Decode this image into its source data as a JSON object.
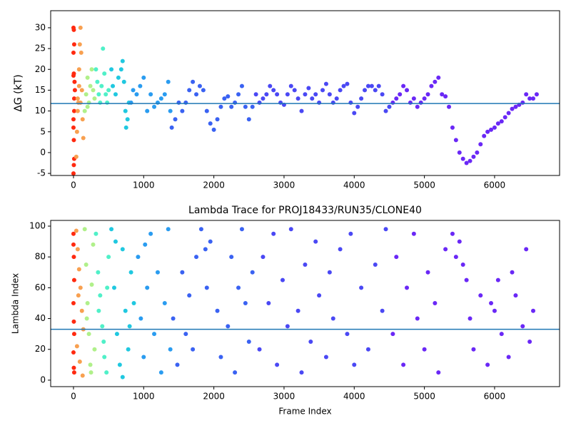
{
  "chart_data": [
    {
      "type": "scatter",
      "ylabel": "ΔG (kT)",
      "xlim": [
        -325,
        6926
      ],
      "ylim": [
        -5.5,
        34.1
      ],
      "xticks": [
        0,
        1000,
        2000,
        3000,
        4000,
        5000,
        6000
      ],
      "yticks": [
        -5,
        0,
        5,
        10,
        15,
        20,
        25,
        30
      ],
      "hline": 11.8,
      "hline_color": "#1f77b4",
      "series": [
        {
          "color": "#ff2a10",
          "x": [
            0,
            5,
            10,
            0,
            5,
            0,
            10,
            0,
            5,
            10,
            5,
            0,
            15,
            20,
            10,
            0
          ],
          "y": [
            30,
            29.5,
            26,
            24,
            19,
            18.5,
            10,
            8,
            3,
            -1.5,
            -3,
            -5,
            17,
            15,
            13,
            6
          ]
        },
        {
          "color": "#f8a050",
          "x": [
            40,
            50,
            60,
            70,
            80,
            90,
            100,
            110,
            120,
            130,
            140,
            100,
            60,
            80
          ],
          "y": [
            -1,
            5,
            10,
            12,
            20,
            26,
            30,
            24,
            15,
            8,
            3.5,
            12,
            13,
            16
          ]
        },
        {
          "color": "#b0f08a",
          "x": [
            160,
            180,
            200,
            220,
            240,
            260,
            280,
            300,
            200
          ],
          "y": [
            10,
            14,
            18,
            12,
            16,
            20,
            15,
            13,
            11
          ]
        },
        {
          "color": "#50f0c8",
          "x": [
            320,
            340,
            360,
            380,
            400,
            420,
            440,
            460,
            480,
            500
          ],
          "y": [
            20,
            17,
            14,
            12,
            16,
            25,
            19,
            14,
            12,
            15
          ]
        },
        {
          "color": "#20c8e0",
          "x": [
            540,
            560,
            600,
            640,
            680,
            700,
            720,
            740,
            750,
            770,
            790
          ],
          "y": [
            20,
            16,
            14,
            18,
            20,
            22,
            17,
            10,
            6,
            8,
            12
          ]
        },
        {
          "color": "#2a9cf0",
          "x": [
            820,
            850,
            900,
            950,
            1000,
            1050,
            1100,
            1150,
            1200,
            1250,
            1300,
            1350,
            1380
          ],
          "y": [
            12,
            15,
            14,
            16,
            18,
            10,
            14,
            11,
            12,
            13,
            14,
            17,
            10
          ]
        },
        {
          "color": "#3a62f2",
          "x": [
            1400,
            1450,
            1500,
            1550,
            1600,
            1650,
            1700,
            1750,
            1800,
            1850,
            1900,
            1950,
            2000,
            2050,
            2100,
            2150,
            2200,
            2250,
            2300,
            2350,
            2400,
            2450,
            2500,
            2550
          ],
          "y": [
            6,
            8,
            12,
            10,
            12,
            15,
            17,
            14,
            16,
            15,
            10,
            7,
            5.5,
            8,
            11,
            13,
            13.5,
            11,
            12,
            14,
            16,
            11,
            8,
            11
          ]
        },
        {
          "color": "#4a48f4",
          "x": [
            2600,
            2650,
            2700,
            2750,
            2800,
            2850,
            2900,
            2950,
            3000,
            3050,
            3100,
            3150,
            3200,
            3250,
            3300,
            3350,
            3400,
            3450,
            3500,
            3550,
            3600,
            3650,
            3700,
            3750,
            3800,
            3850,
            3900,
            3950,
            4000,
            4050,
            4100,
            4150,
            4200,
            4250,
            4300,
            4350,
            4400,
            4450,
            4500
          ],
          "y": [
            14,
            12,
            13,
            14,
            16,
            15,
            14,
            12,
            11.5,
            14,
            16,
            15,
            13,
            10,
            14,
            15.5,
            13,
            14,
            12,
            15,
            16.5,
            14,
            12,
            13,
            15,
            16,
            16.5,
            12,
            9.5,
            11,
            13,
            15,
            16,
            16,
            15,
            16,
            14,
            10,
            11
          ]
        },
        {
          "color": "#6a28f6",
          "x": [
            4550,
            4600,
            4650,
            4700,
            4750,
            4800,
            4850,
            4900,
            4950,
            5000,
            5050,
            5100,
            5150,
            5200,
            5250,
            5300,
            5350,
            5400,
            5450,
            5500,
            5550,
            5600,
            5650,
            5700,
            5750,
            5800,
            5850,
            5900,
            5950,
            6000,
            6050,
            6100,
            6150,
            6200,
            6250,
            6300,
            6350,
            6400,
            6450,
            6500,
            6550,
            6600
          ],
          "y": [
            12,
            13,
            14,
            16,
            15,
            12,
            13,
            11,
            12,
            13,
            14,
            16,
            17,
            18,
            14,
            13.5,
            11,
            6,
            3,
            0,
            -1.5,
            -2.5,
            -2,
            -1,
            0,
            2,
            4,
            5,
            5.5,
            6,
            7,
            7.5,
            8.5,
            9.5,
            10.5,
            11,
            11.5,
            12,
            14,
            13,
            13,
            14
          ]
        }
      ]
    },
    {
      "type": "scatter",
      "title": "Lambda Trace for PROJ18433/RUN35/CLONE40",
      "xlabel": "Frame Index",
      "ylabel": "Lambda Index",
      "xlim": [
        -325,
        6926
      ],
      "ylim": [
        -4.2,
        103.7
      ],
      "xticks": [
        0,
        1000,
        2000,
        3000,
        4000,
        5000,
        6000
      ],
      "yticks": [
        0,
        20,
        40,
        60,
        80,
        100
      ],
      "hline": 33,
      "hline_color": "#1f77b4",
      "series": [
        {
          "color": "#ff2a10",
          "x": [
            0,
            5,
            10,
            0,
            5,
            10,
            0,
            5,
            10,
            0
          ],
          "y": [
            95,
            80,
            65,
            50,
            38,
            30,
            18,
            8,
            5,
            88
          ]
        },
        {
          "color": "#f8a050",
          "x": [
            40,
            60,
            80,
            100,
            120,
            140,
            50,
            90,
            130,
            70
          ],
          "y": [
            97,
            85,
            72,
            60,
            45,
            33,
            22,
            12,
            3,
            55
          ]
        },
        {
          "color": "#b0f08a",
          "x": [
            160,
            180,
            200,
            220,
            240,
            260,
            280,
            300,
            190,
            250
          ],
          "y": [
            98,
            75,
            50,
            30,
            10,
            62,
            88,
            20,
            40,
            5
          ]
        },
        {
          "color": "#50f0c8",
          "x": [
            320,
            350,
            380,
            410,
            440,
            470,
            500,
            360,
            430,
            480
          ],
          "y": [
            95,
            70,
            55,
            35,
            15,
            5,
            80,
            45,
            25,
            60
          ]
        },
        {
          "color": "#20c8e0",
          "x": [
            540,
            580,
            620,
            660,
            700,
            740,
            780,
            820,
            860,
            600,
            700,
            800
          ],
          "y": [
            98,
            60,
            30,
            10,
            85,
            45,
            20,
            70,
            50,
            90,
            2,
            35
          ]
        },
        {
          "color": "#2a9cf0",
          "x": [
            920,
            960,
            1000,
            1050,
            1100,
            1150,
            1200,
            1250,
            1300,
            1350,
            1380,
            1020
          ],
          "y": [
            80,
            40,
            15,
            60,
            95,
            30,
            70,
            5,
            50,
            98,
            20,
            88
          ]
        },
        {
          "color": "#3a62f2",
          "x": [
            1420,
            1480,
            1550,
            1600,
            1650,
            1700,
            1750,
            1820,
            1880,
            1900,
            1950,
            2050,
            2100,
            2200,
            2250,
            2300,
            2350,
            2400,
            2450,
            2500,
            2550
          ],
          "y": [
            40,
            10,
            70,
            30,
            55,
            20,
            80,
            98,
            85,
            60,
            90,
            45,
            15,
            35,
            80,
            5,
            60,
            98,
            50,
            25,
            70
          ]
        },
        {
          "color": "#4a48f4",
          "x": [
            2650,
            2700,
            2780,
            2850,
            2900,
            2980,
            3050,
            3100,
            3200,
            3250,
            3300,
            3380,
            3450,
            3500,
            3600,
            3650,
            3700,
            3800,
            3900,
            3950,
            4000,
            4100,
            4200,
            4300,
            4400,
            4450
          ],
          "y": [
            20,
            80,
            50,
            95,
            10,
            65,
            35,
            98,
            45,
            5,
            75,
            25,
            90,
            55,
            15,
            70,
            40,
            85,
            30,
            95,
            10,
            60,
            20,
            75,
            45,
            98
          ]
        },
        {
          "color": "#6a28f6",
          "x": [
            4550,
            4600,
            4700,
            4750,
            4850,
            4900,
            5000,
            5050,
            5150,
            5200,
            5300,
            5400,
            5450,
            5500,
            5550,
            5600,
            5650,
            5700,
            5800,
            5900,
            5950,
            6000,
            6050,
            6100,
            6200,
            6250,
            6300,
            6400,
            6450,
            6500,
            6550
          ],
          "y": [
            30,
            80,
            10,
            60,
            95,
            40,
            20,
            70,
            50,
            5,
            85,
            95,
            80,
            90,
            75,
            65,
            40,
            20,
            55,
            10,
            50,
            45,
            65,
            30,
            15,
            70,
            55,
            35,
            85,
            25,
            45
          ]
        }
      ]
    }
  ]
}
